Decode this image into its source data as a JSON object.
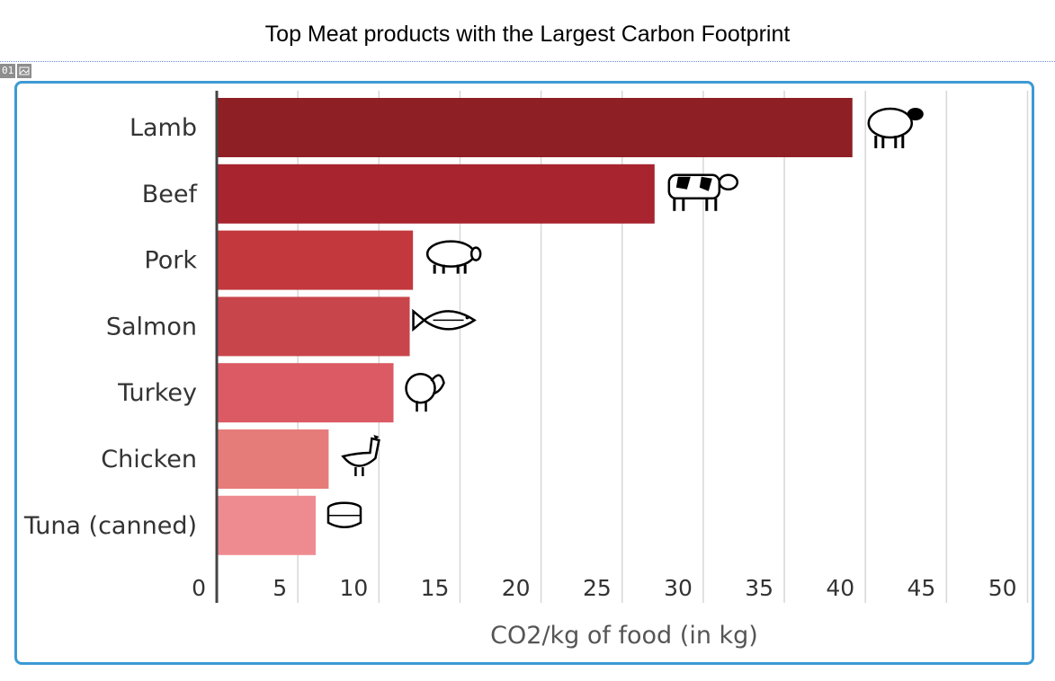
{
  "page": {
    "title": "Top Meat products with the Largest Carbon Footprint"
  },
  "tag": {
    "text": "01",
    "icon": "image-icon"
  },
  "frame": {
    "border_color": "#3d9ad3"
  },
  "chart_data": {
    "type": "bar",
    "orientation": "horizontal",
    "title": "Top Meat products with the Largest Carbon Footprint",
    "categories": [
      "Lamb",
      "Beef",
      "Pork",
      "Salmon",
      "Turkey",
      "Chicken",
      "Tuna (canned)"
    ],
    "values": [
      39.2,
      27.0,
      12.1,
      11.9,
      10.9,
      6.9,
      6.1
    ],
    "colors": [
      "#8e1f24",
      "#a8242f",
      "#c3383c",
      "#c9454c",
      "#dc5a63",
      "#e67c79",
      "#ee8b91"
    ],
    "icons": [
      "sheep-icon",
      "cow-icon",
      "pig-icon",
      "fish-icon",
      "turkey-icon",
      "chicken-icon",
      "can-icon"
    ],
    "xlabel": "CO2/kg of food (in kg)",
    "ylabel": "",
    "xlim": [
      0,
      50
    ],
    "xticks": [
      0,
      5,
      10,
      15,
      20,
      25,
      30,
      35,
      40,
      45,
      50
    ],
    "grid": true,
    "legend": "none"
  }
}
